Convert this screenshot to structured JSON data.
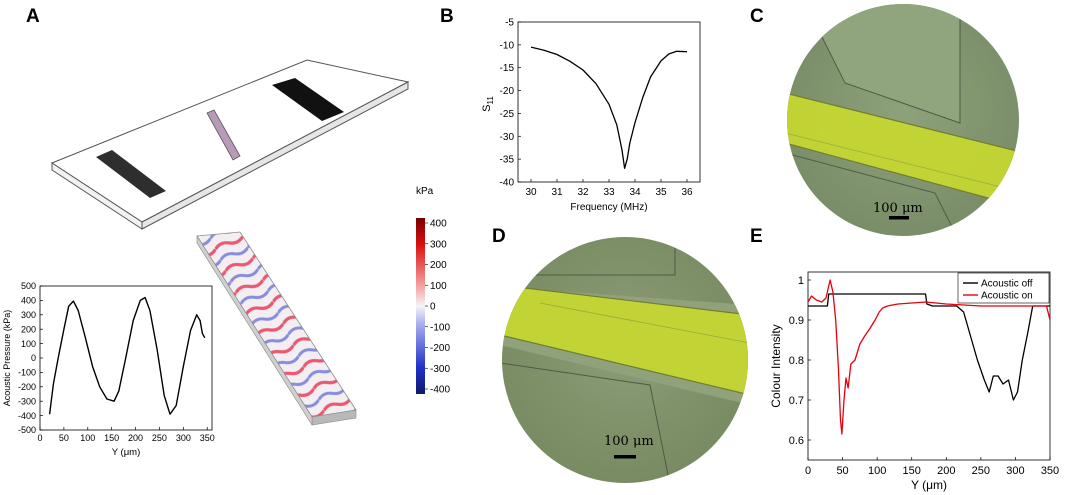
{
  "figure": {
    "panels": [
      {
        "letter": "A"
      },
      {
        "letter": "B"
      },
      {
        "letter": "C"
      },
      {
        "letter": "D"
      },
      {
        "letter": "E"
      }
    ],
    "colorbar": {
      "unit": "kPa",
      "ticks": [
        "400",
        "300",
        "200",
        "100",
        "0",
        "-100",
        "-200",
        "-300",
        "-400"
      ],
      "colors": {
        "high": "#7a0000",
        "mid": "#f4f4f8",
        "low": "#101a6a"
      }
    },
    "micrographs": [
      {
        "scale_label": "100 μm"
      },
      {
        "scale_label": "100 μm"
      }
    ],
    "colors": {
      "acoustic_off": "#000000",
      "acoustic_on": "#e8000b",
      "channel": "#c4d632",
      "background_tissue": "#8c9c78"
    }
  },
  "chart_data": [
    {
      "id": "A",
      "type": "line",
      "title": "",
      "xlabel": "Y (μm)",
      "ylabel": "Acoustic Pressure (kPa)",
      "xlim": [
        0,
        360
      ],
      "ylim": [
        -500,
        500
      ],
      "xticks": [
        "0",
        "50",
        "100",
        "150",
        "200",
        "250",
        "300",
        "350"
      ],
      "yticks": [
        "500",
        "400",
        "300",
        "200",
        "100",
        "0",
        "-100",
        "-200",
        "-300",
        "-400",
        "-500"
      ],
      "series": [
        {
          "x": [
            20,
            28,
            38,
            50,
            60,
            70,
            80,
            95,
            110,
            125,
            140,
            155,
            165,
            180,
            195,
            210,
            220,
            230,
            245,
            260,
            272,
            285,
            300,
            315,
            328,
            335,
            340,
            345
          ],
          "y": [
            -390,
            -180,
            0,
            200,
            360,
            395,
            330,
            140,
            -60,
            -200,
            -285,
            -300,
            -230,
            10,
            260,
            400,
            420,
            330,
            60,
            -260,
            -390,
            -330,
            -60,
            190,
            300,
            260,
            170,
            140
          ]
        }
      ]
    },
    {
      "id": "B",
      "type": "line",
      "title": "",
      "xlabel": "Frequency (MHz)",
      "ylabel": "S11",
      "xlim": [
        29.5,
        36.5
      ],
      "ylim": [
        -40,
        -5
      ],
      "xticks": [
        "30",
        "31",
        "32",
        "33",
        "34",
        "35",
        "36"
      ],
      "yticks": [
        "-5",
        "-10",
        "-15",
        "-20",
        "-25",
        "-30",
        "-35",
        "-40"
      ],
      "series": [
        {
          "x": [
            30,
            30.5,
            31,
            31.5,
            32,
            32.5,
            33,
            33.3,
            33.5,
            33.6,
            33.7,
            33.8,
            34,
            34.3,
            34.6,
            35,
            35.3,
            35.6,
            36
          ],
          "y": [
            -10.5,
            -11.2,
            -12.1,
            -13.6,
            -15.5,
            -18.5,
            -23,
            -27.5,
            -33,
            -37,
            -35,
            -31.5,
            -27,
            -21.5,
            -17,
            -13.5,
            -12,
            -11.4,
            -11.5
          ]
        }
      ]
    },
    {
      "id": "E",
      "type": "line",
      "title": "",
      "xlabel": "Y (μm)",
      "ylabel": "Colour Intensity",
      "xlim": [
        0,
        350
      ],
      "ylim": [
        0.55,
        1.02
      ],
      "xticks": [
        "0",
        "50",
        "100",
        "150",
        "200",
        "250",
        "300",
        "350"
      ],
      "yticks": [
        "1",
        "0.9",
        "0.8",
        "0.7",
        "0.6"
      ],
      "legend": "top-right",
      "series": [
        {
          "name": "Acoustic off",
          "x": [
            0,
            28,
            30,
            170,
            172,
            180,
            200,
            215,
            225,
            235,
            245,
            255,
            262,
            268,
            275,
            282,
            290,
            297,
            303,
            310,
            318,
            325,
            333,
            340,
            350
          ],
          "y": [
            0.935,
            0.935,
            0.965,
            0.965,
            0.94,
            0.935,
            0.935,
            0.935,
            0.92,
            0.86,
            0.8,
            0.75,
            0.72,
            0.76,
            0.76,
            0.74,
            0.75,
            0.7,
            0.72,
            0.8,
            0.87,
            0.935,
            0.935,
            0.935,
            0.935
          ]
        },
        {
          "name": "Acoustic on",
          "x": [
            0,
            5,
            12,
            20,
            26,
            32,
            36,
            40,
            44,
            47,
            49,
            52,
            55,
            58,
            62,
            68,
            75,
            82,
            90,
            97,
            103,
            108,
            115,
            130,
            170,
            200,
            250,
            300,
            345,
            350
          ],
          "y": [
            0.945,
            0.96,
            0.95,
            0.945,
            0.955,
            1.0,
            0.97,
            0.9,
            0.78,
            0.65,
            0.615,
            0.7,
            0.755,
            0.73,
            0.79,
            0.8,
            0.84,
            0.86,
            0.88,
            0.9,
            0.92,
            0.93,
            0.935,
            0.94,
            0.945,
            0.94,
            0.935,
            0.935,
            0.935,
            0.9
          ]
        }
      ]
    }
  ]
}
